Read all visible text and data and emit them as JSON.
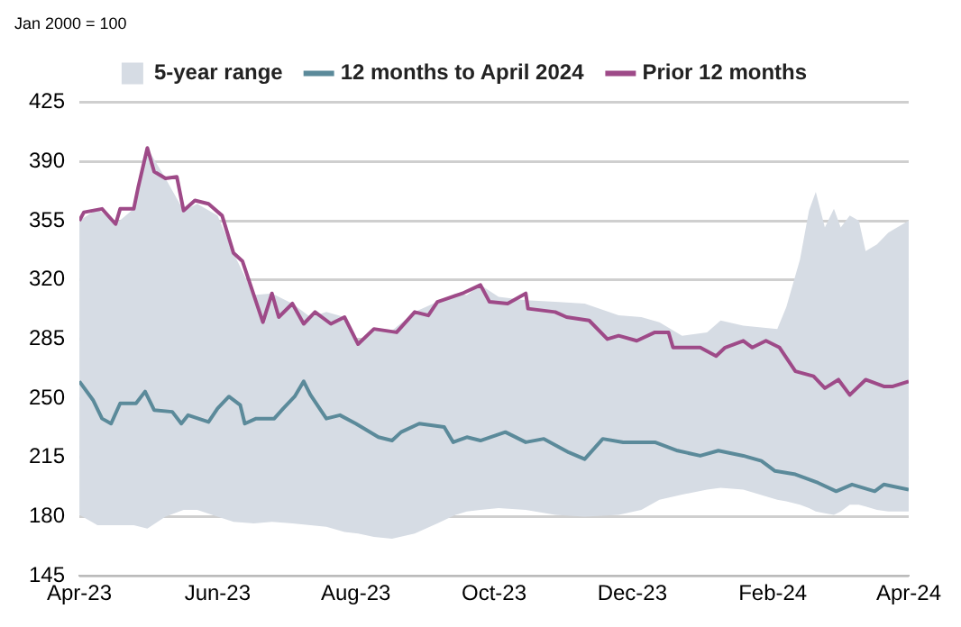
{
  "chart_data": {
    "type": "line",
    "subtitle": "Jan 2000 = 100",
    "xlim": [
      "2023-04-01",
      "2024-04-01"
    ],
    "xticks": [
      {
        "value": "2023-04-01",
        "label": "Apr-23"
      },
      {
        "value": "2023-06-01",
        "label": "Jun-23"
      },
      {
        "value": "2023-08-01",
        "label": "Aug-23"
      },
      {
        "value": "2023-10-01",
        "label": "Oct-23"
      },
      {
        "value": "2023-12-01",
        "label": "Dec-23"
      },
      {
        "value": "2024-02-01",
        "label": "Feb-24"
      },
      {
        "value": "2024-04-01",
        "label": "Apr-24"
      }
    ],
    "ylim": [
      145,
      425
    ],
    "yticks": [
      145,
      180,
      215,
      250,
      285,
      320,
      355,
      390,
      425
    ],
    "grid": "y",
    "legend": "top",
    "marker": "none",
    "line_style": "solid",
    "series": [
      {
        "name": "5-year range",
        "type": "area",
        "color": "#d6dce4",
        "x": [
          "2023-04-01",
          "2023-04-09",
          "2023-04-17",
          "2023-04-25",
          "2023-05-01",
          "2023-05-09",
          "2023-05-17",
          "2023-05-23",
          "2023-06-01",
          "2023-06-08",
          "2023-06-17",
          "2023-06-25",
          "2023-07-04",
          "2023-07-12",
          "2023-07-19",
          "2023-07-27",
          "2023-08-02",
          "2023-08-09",
          "2023-08-17",
          "2023-08-27",
          "2023-09-06",
          "2023-09-14",
          "2023-09-19",
          "2023-09-25",
          "2023-10-03",
          "2023-10-15",
          "2023-10-28",
          "2023-11-10",
          "2023-11-25",
          "2023-12-05",
          "2023-12-13",
          "2023-12-23",
          "2024-01-03",
          "2024-01-09",
          "2024-01-19",
          "2024-02-03",
          "2024-02-07",
          "2024-02-13",
          "2024-02-17",
          "2024-02-20",
          "2024-02-24",
          "2024-02-28",
          "2024-03-02",
          "2024-03-06",
          "2024-03-10",
          "2024-03-13",
          "2024-03-18",
          "2024-03-23",
          "2024-04-01"
        ],
        "lower": [
          181,
          175,
          175,
          175,
          173,
          180,
          184,
          184,
          180,
          177,
          176,
          177,
          176,
          175,
          174,
          171,
          170,
          168,
          167,
          170,
          176,
          181,
          183,
          184,
          185,
          184,
          181,
          180,
          181,
          184,
          190,
          193,
          196,
          197,
          196,
          190,
          189,
          187,
          185,
          183,
          182,
          181,
          183,
          187,
          187,
          186,
          184,
          183,
          183
        ],
        "upper": [
          355,
          362,
          353,
          362,
          398,
          380,
          361,
          365,
          358,
          336,
          311,
          312,
          306,
          298,
          301,
          298,
          282,
          291,
          290,
          301,
          307,
          312,
          311,
          317,
          310,
          308,
          307,
          306,
          299,
          298,
          295,
          287,
          289,
          296,
          293,
          291,
          304,
          332,
          361,
          372,
          351,
          362,
          351,
          358,
          355,
          337,
          341,
          348,
          355
        ],
        "values": [
          null,
          null,
          null,
          null,
          null,
          null,
          null,
          null,
          null,
          null,
          null,
          null,
          null,
          null,
          null,
          null,
          null,
          null,
          null,
          null,
          null,
          null,
          null,
          null,
          null,
          null,
          null,
          null,
          null,
          null,
          null,
          null,
          null,
          null,
          null,
          null,
          null,
          null,
          null,
          null,
          null,
          null,
          null,
          null,
          null,
          null,
          null,
          null,
          null
        ]
      },
      {
        "name": "12 months to April 2024",
        "color": "#5b8a9a",
        "x": [
          "2023-04-01",
          "2023-04-07",
          "2023-04-11",
          "2023-04-15",
          "2023-04-19",
          "2023-04-26",
          "2023-04-30",
          "2023-05-04",
          "2023-05-12",
          "2023-05-16",
          "2023-05-19",
          "2023-05-28",
          "2023-06-01",
          "2023-06-06",
          "2023-06-11",
          "2023-06-13",
          "2023-06-18",
          "2023-06-26",
          "2023-06-30",
          "2023-07-05",
          "2023-07-09",
          "2023-07-12",
          "2023-07-19",
          "2023-07-25",
          "2023-08-01",
          "2023-08-11",
          "2023-08-17",
          "2023-08-21",
          "2023-08-29",
          "2023-09-09",
          "2023-09-13",
          "2023-09-19",
          "2023-09-25",
          "2023-10-06",
          "2023-10-15",
          "2023-10-23",
          "2023-11-03",
          "2023-11-10",
          "2023-11-18",
          "2023-11-27",
          "2023-12-11",
          "2023-12-21",
          "2023-12-31",
          "2024-01-08",
          "2024-01-19",
          "2024-01-27",
          "2024-02-02",
          "2024-02-11",
          "2024-02-21",
          "2024-02-29",
          "2024-03-07",
          "2024-03-17",
          "2024-03-21",
          "2024-04-01"
        ],
        "values": [
          260,
          249,
          238,
          235,
          247,
          247,
          254,
          243,
          242,
          235,
          240,
          236,
          244,
          251,
          246,
          235,
          238,
          238,
          244,
          251,
          260,
          252,
          238,
          240,
          235,
          227,
          225,
          230,
          235,
          233,
          224,
          227,
          225,
          230,
          224,
          226,
          218,
          214,
          226,
          224,
          224,
          219,
          216,
          219,
          216,
          213,
          207,
          205,
          200,
          195,
          199,
          195,
          199,
          196
        ]
      },
      {
        "name": "Prior 12 months",
        "color": "#9e4a88",
        "x": [
          "2023-04-01",
          "2023-04-03",
          "2023-04-11",
          "2023-04-17",
          "2023-04-19",
          "2023-04-25",
          "2023-04-27",
          "2023-05-01",
          "2023-05-04",
          "2023-05-09",
          "2023-05-14",
          "2023-05-17",
          "2023-05-22",
          "2023-05-28",
          "2023-06-03",
          "2023-06-08",
          "2023-06-12",
          "2023-06-17",
          "2023-06-21",
          "2023-06-25",
          "2023-06-28",
          "2023-07-04",
          "2023-07-09",
          "2023-07-14",
          "2023-07-21",
          "2023-07-27",
          "2023-08-02",
          "2023-08-09",
          "2023-08-19",
          "2023-08-27",
          "2023-09-02",
          "2023-09-06",
          "2023-09-17",
          "2023-09-25",
          "2023-09-29",
          "2023-10-07",
          "2023-10-15",
          "2023-10-16",
          "2023-10-28",
          "2023-11-02",
          "2023-11-12",
          "2023-11-20",
          "2023-11-25",
          "2023-12-03",
          "2023-12-11",
          "2023-12-17",
          "2023-12-19",
          "2023-12-31",
          "2024-01-07",
          "2024-01-11",
          "2024-01-19",
          "2024-01-23",
          "2024-01-29",
          "2024-02-04",
          "2024-02-11",
          "2024-02-19",
          "2024-02-24",
          "2024-03-01",
          "2024-03-06",
          "2024-03-13",
          "2024-03-21",
          "2024-03-25",
          "2024-04-01"
        ],
        "values": [
          355,
          360,
          362,
          353,
          362,
          362,
          375,
          398,
          384,
          380,
          381,
          361,
          367,
          365,
          358,
          336,
          331,
          311,
          295,
          312,
          298,
          306,
          294,
          301,
          294,
          298,
          282,
          291,
          289,
          301,
          299,
          307,
          312,
          317,
          307,
          306,
          312,
          303,
          301,
          298,
          296,
          285,
          287,
          284,
          289,
          289,
          280,
          280,
          275,
          280,
          284,
          280,
          284,
          280,
          266,
          263,
          256,
          261,
          252,
          261,
          257,
          257,
          260
        ]
      }
    ]
  }
}
